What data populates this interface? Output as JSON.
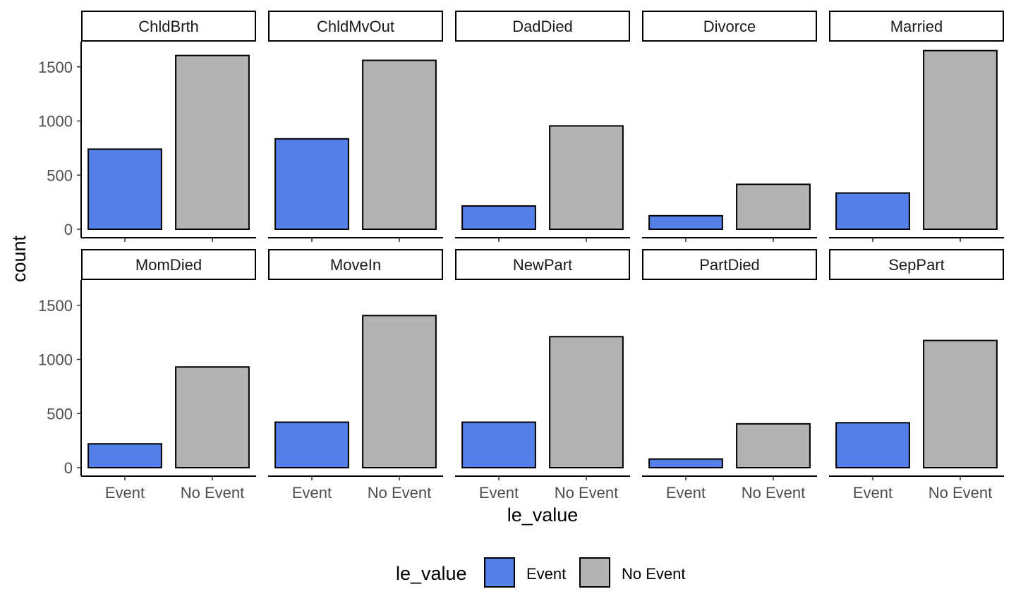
{
  "chart_data": {
    "type": "bar",
    "facet_layout": "2 rows x 5 columns",
    "categories": [
      "Event",
      "No Event"
    ],
    "xlabel": "le_value",
    "ylabel": "count",
    "ylim": [
      0,
      1720
    ],
    "y_ticks": [
      0,
      500,
      1000,
      1500
    ],
    "grid": false,
    "legend": {
      "title": "le_value",
      "placement": "bottom",
      "entries": [
        {
          "label": "Event",
          "color": "#5580EA"
        },
        {
          "label": "No Event",
          "color": "#B3B3B3"
        }
      ]
    },
    "facets": [
      {
        "label": "ChldBrth",
        "values": [
          740,
          1605
        ]
      },
      {
        "label": "ChldMvOut",
        "values": [
          835,
          1560
        ]
      },
      {
        "label": "DadDied",
        "values": [
          215,
          955
        ]
      },
      {
        "label": "Divorce",
        "values": [
          125,
          415
        ]
      },
      {
        "label": "Married",
        "values": [
          335,
          1650
        ]
      },
      {
        "label": "MomDied",
        "values": [
          220,
          930
        ]
      },
      {
        "label": "MoveIn",
        "values": [
          420,
          1405
        ]
      },
      {
        "label": "NewPart",
        "values": [
          420,
          1210
        ]
      },
      {
        "label": "PartDied",
        "values": [
          80,
          405
        ]
      },
      {
        "label": "SepPart",
        "values": [
          415,
          1175
        ]
      }
    ]
  }
}
